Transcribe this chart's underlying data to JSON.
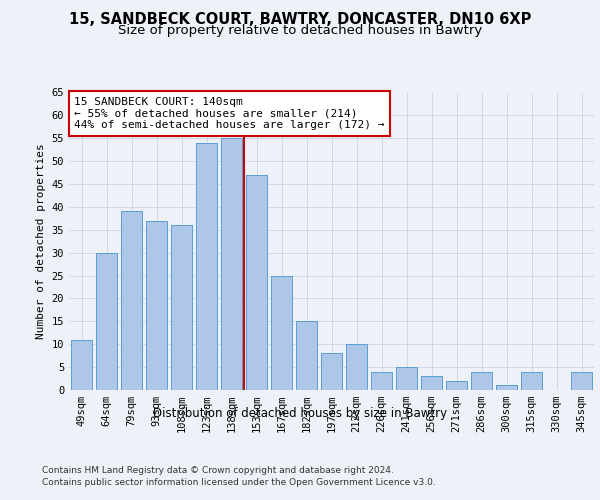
{
  "title1": "15, SANDBECK COURT, BAWTRY, DONCASTER, DN10 6XP",
  "title2": "Size of property relative to detached houses in Bawtry",
  "xlabel": "Distribution of detached houses by size in Bawtry",
  "ylabel": "Number of detached properties",
  "categories": [
    "49sqm",
    "64sqm",
    "79sqm",
    "93sqm",
    "108sqm",
    "123sqm",
    "138sqm",
    "153sqm",
    "167sqm",
    "182sqm",
    "197sqm",
    "212sqm",
    "226sqm",
    "241sqm",
    "256sqm",
    "271sqm",
    "286sqm",
    "300sqm",
    "315sqm",
    "330sqm",
    "345sqm"
  ],
  "values": [
    11,
    30,
    39,
    37,
    36,
    54,
    55,
    47,
    25,
    15,
    8,
    10,
    4,
    5,
    3,
    2,
    4,
    1,
    4,
    0,
    4
  ],
  "bar_color": "#aec6e8",
  "bar_edge_color": "#5a9fd4",
  "vline_x": 6.5,
  "vline_color": "#cc0000",
  "annotation_line1": "15 SANDBECK COURT: 140sqm",
  "annotation_line2": "← 55% of detached houses are smaller (214)",
  "annotation_line3": "44% of semi-detached houses are larger (172) →",
  "annotation_box_color": "#ffffff",
  "annotation_box_edge": "#cc0000",
  "ylim": [
    0,
    65
  ],
  "yticks": [
    0,
    5,
    10,
    15,
    20,
    25,
    30,
    35,
    40,
    45,
    50,
    55,
    60,
    65
  ],
  "grid_color": "#c8d4e8",
  "footer1": "Contains HM Land Registry data © Crown copyright and database right 2024.",
  "footer2": "Contains public sector information licensed under the Open Government Licence v3.0.",
  "bg_color": "#eef2f8",
  "title1_fontsize": 10.5,
  "title2_fontsize": 9.5,
  "xlabel_fontsize": 8.5,
  "ylabel_fontsize": 8,
  "tick_fontsize": 7.5,
  "annotation_fontsize": 8,
  "footer_fontsize": 6.5
}
